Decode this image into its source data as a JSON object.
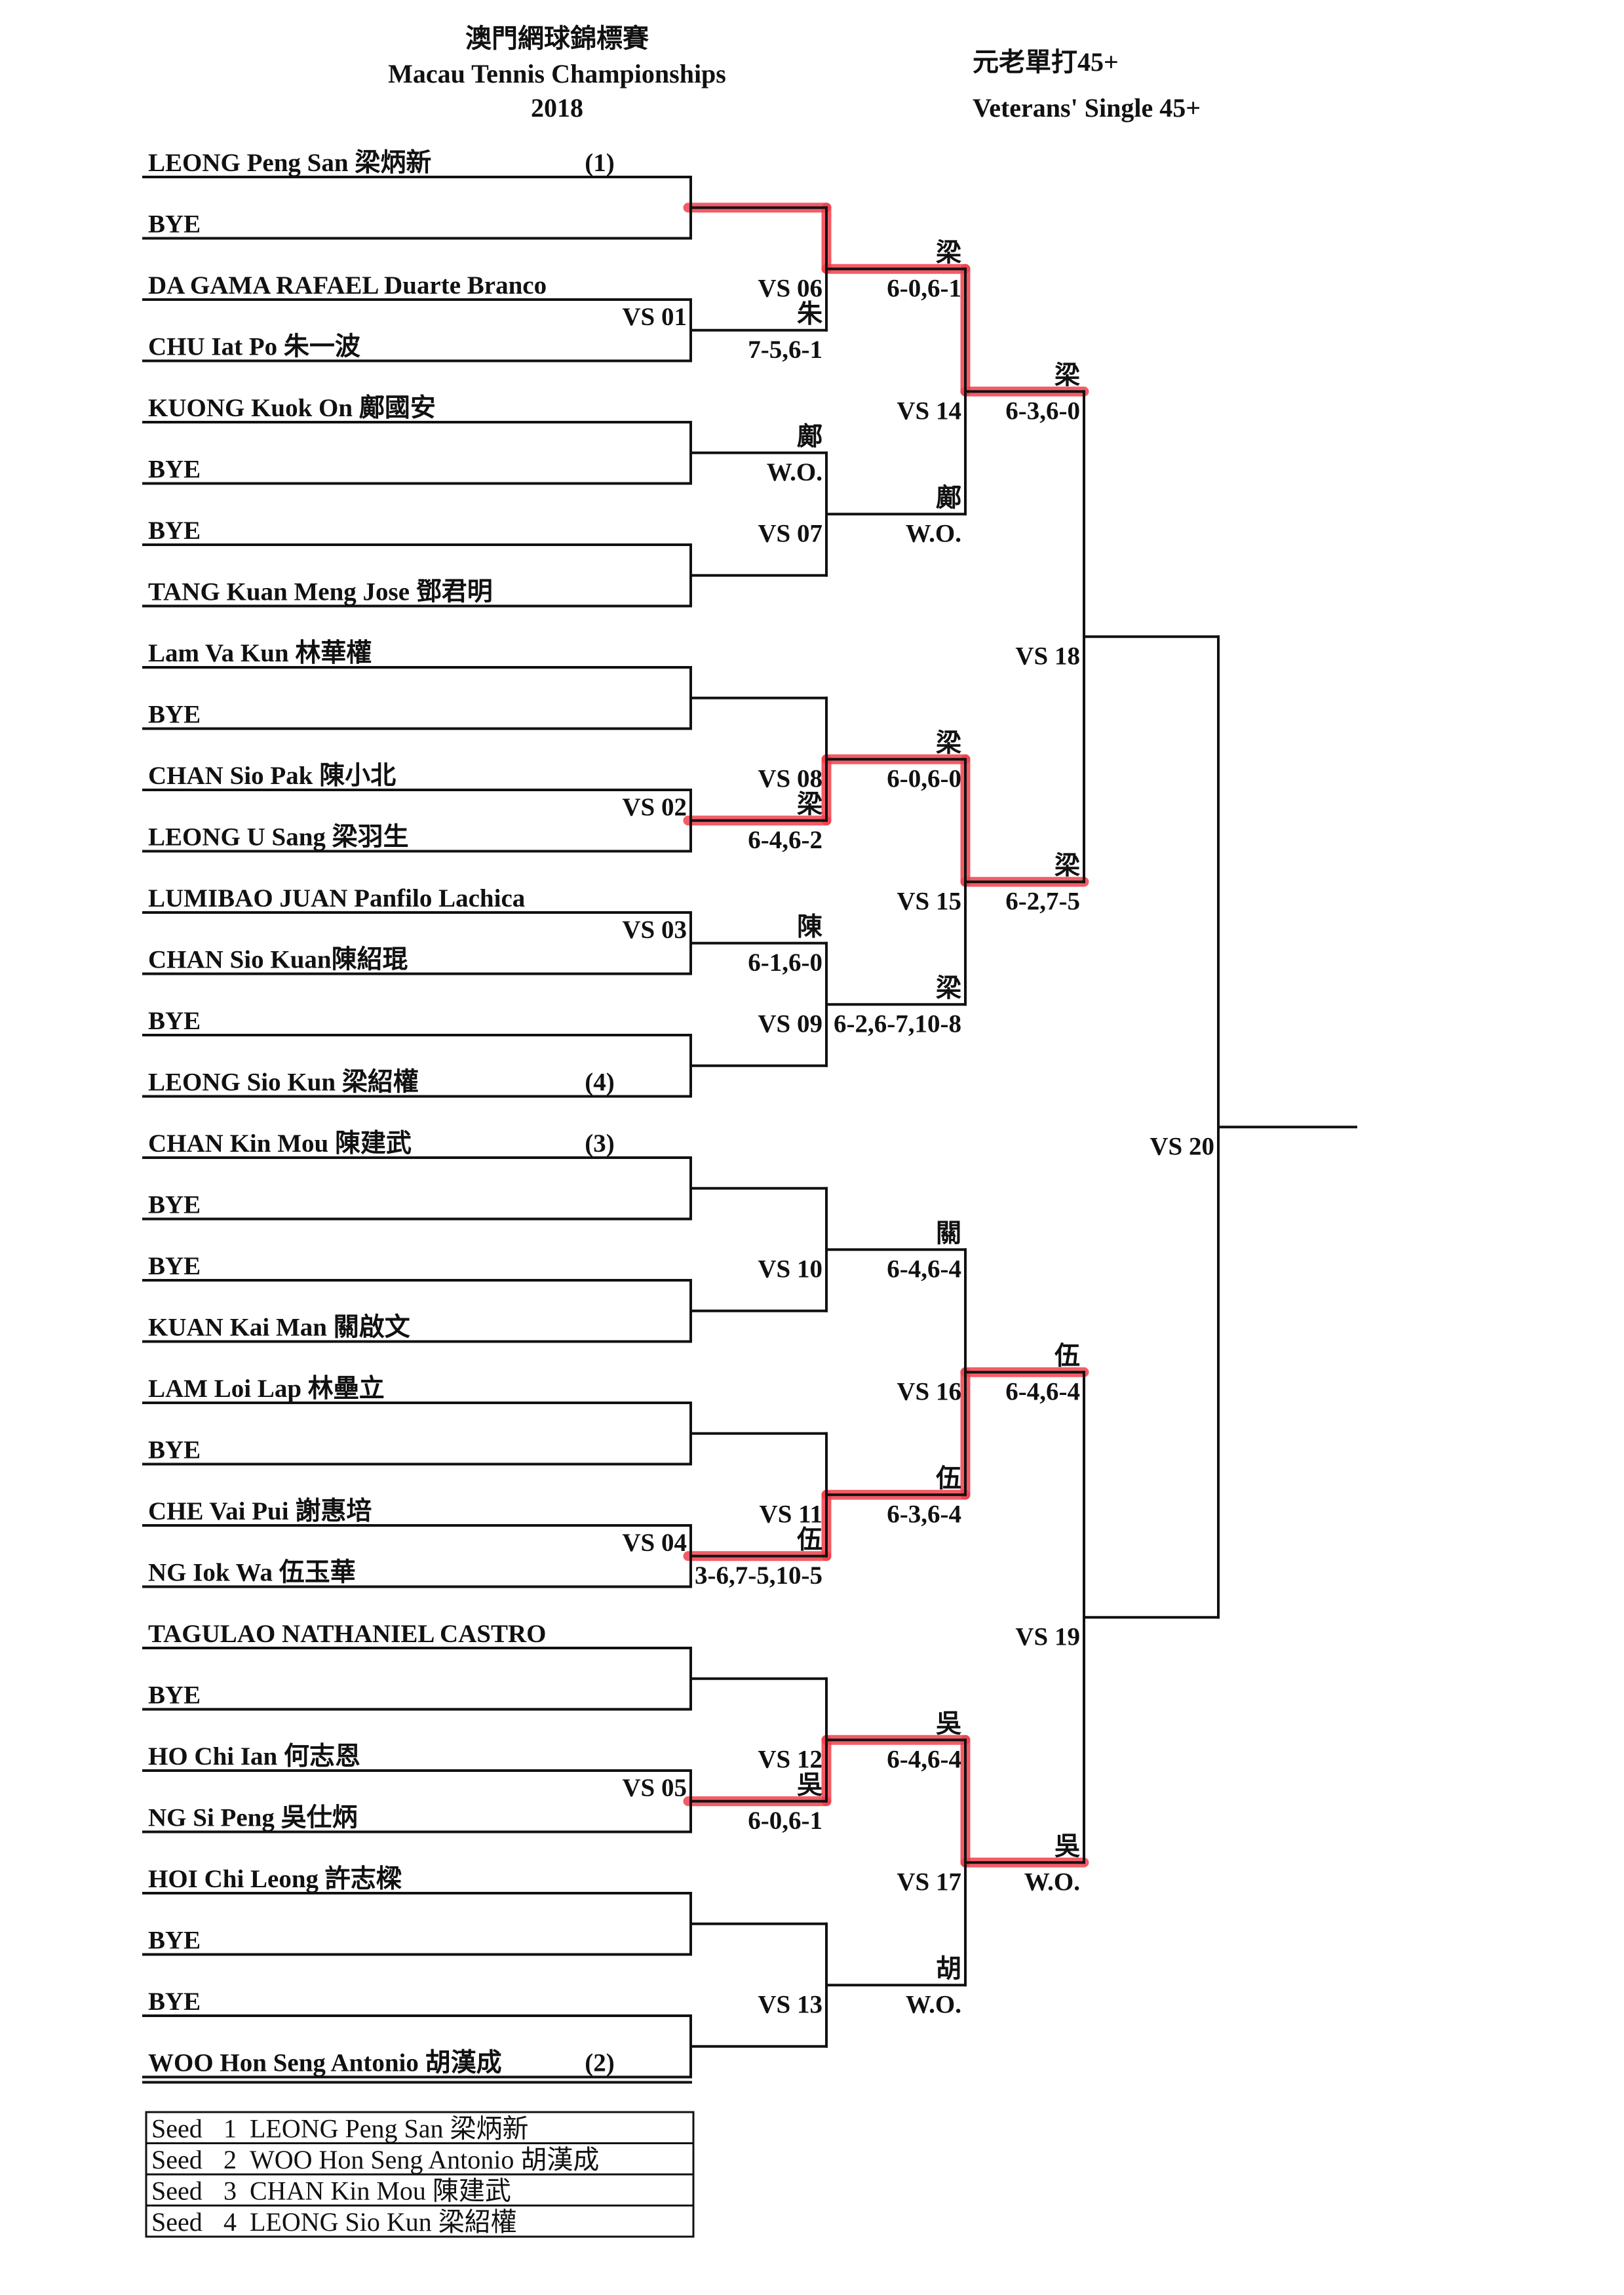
{
  "header": {
    "title_zh": "澳門網球錦標賽",
    "title_en": "Macau Tennis Championships",
    "year": "2018",
    "event_zh": "元老單打45+",
    "event_en": "Veterans' Single 45+"
  },
  "colors": {
    "ink": "#111111",
    "highlight": "#f0404c"
  },
  "players": [
    {
      "name": "LEONG Peng San 梁炳新",
      "seed": "(1)"
    },
    {
      "name": "BYE",
      "seed": ""
    },
    {
      "name": "DA GAMA RAFAEL Duarte Branco",
      "seed": ""
    },
    {
      "name": "CHU Iat Po 朱一波",
      "seed": ""
    },
    {
      "name": "KUONG Kuok On 鄺國安",
      "seed": ""
    },
    {
      "name": "BYE",
      "seed": ""
    },
    {
      "name": "BYE",
      "seed": ""
    },
    {
      "name": "TANG Kuan Meng Jose 鄧君明",
      "seed": ""
    },
    {
      "name": "Lam Va Kun 林華權",
      "seed": ""
    },
    {
      "name": "BYE",
      "seed": ""
    },
    {
      "name": "CHAN Sio Pak 陳小北",
      "seed": ""
    },
    {
      "name": "LEONG U Sang 梁羽生",
      "seed": ""
    },
    {
      "name": "LUMIBAO JUAN Panfilo Lachica",
      "seed": ""
    },
    {
      "name": "CHAN Sio Kuan陳紹琨",
      "seed": ""
    },
    {
      "name": "BYE",
      "seed": ""
    },
    {
      "name": "LEONG Sio Kun 梁紹權",
      "seed": "(4)"
    },
    {
      "name": "CHAN Kin Mou 陳建武",
      "seed": "(3)"
    },
    {
      "name": "BYE",
      "seed": ""
    },
    {
      "name": "BYE",
      "seed": ""
    },
    {
      "name": "KUAN Kai Man 關啟文",
      "seed": ""
    },
    {
      "name": "LAM Loi Lap 林壘立",
      "seed": ""
    },
    {
      "name": "BYE",
      "seed": ""
    },
    {
      "name": "CHE Vai Pui 謝惠培",
      "seed": ""
    },
    {
      "name": "NG Iok Wa 伍玉華",
      "seed": ""
    },
    {
      "name": "TAGULAO NATHANIEL CASTRO",
      "seed": ""
    },
    {
      "name": "BYE",
      "seed": ""
    },
    {
      "name": "HO Chi Ian 何志恩",
      "seed": ""
    },
    {
      "name": "NG Si Peng 吳仕炳",
      "seed": ""
    },
    {
      "name": "HOI Chi Leong 許志樑",
      "seed": ""
    },
    {
      "name": "BYE",
      "seed": ""
    },
    {
      "name": "BYE",
      "seed": ""
    },
    {
      "name": "WOO Hon Seng Antonio 胡漢成",
      "seed": "(2)"
    }
  ],
  "rounds": [
    [
      {
        "label": "",
        "winner": "",
        "score": "",
        "highlighted": true
      },
      {
        "label": "VS 01",
        "winner": "朱",
        "score": "7-5,6-1",
        "highlighted": false
      },
      {
        "label": "",
        "winner": "鄺",
        "score": "W.O.",
        "highlighted": false
      },
      {
        "label": "",
        "winner": "",
        "score": "",
        "highlighted": false
      },
      {
        "label": "",
        "winner": "",
        "score": "",
        "highlighted": false
      },
      {
        "label": "VS 02",
        "winner": "梁",
        "score": "6-4,6-2",
        "highlighted": true
      },
      {
        "label": "VS 03",
        "winner": "陳",
        "score": "6-1,6-0",
        "highlighted": false
      },
      {
        "label": "",
        "winner": "",
        "score": "",
        "highlighted": false
      },
      {
        "label": "",
        "winner": "",
        "score": "",
        "highlighted": false
      },
      {
        "label": "",
        "winner": "",
        "score": "",
        "highlighted": false
      },
      {
        "label": "",
        "winner": "",
        "score": "",
        "highlighted": false
      },
      {
        "label": "VS 04",
        "winner": "伍",
        "score": "3-6,7-5,10-5",
        "highlighted": true
      },
      {
        "label": "",
        "winner": "",
        "score": "",
        "highlighted": false
      },
      {
        "label": "VS 05",
        "winner": "吳",
        "score": "6-0,6-1",
        "highlighted": true
      },
      {
        "label": "",
        "winner": "",
        "score": "",
        "highlighted": false
      },
      {
        "label": "",
        "winner": "",
        "score": "",
        "highlighted": false
      }
    ],
    [
      {
        "label": "VS 06",
        "winner": "梁",
        "score": "6-0,6-1",
        "highlighted": true
      },
      {
        "label": "VS 07",
        "winner": "鄺",
        "score": "W.O.",
        "highlighted": false
      },
      {
        "label": "VS 08",
        "winner": "梁",
        "score": "6-0,6-0",
        "highlighted": true
      },
      {
        "label": "VS 09",
        "winner": "梁",
        "score": "6-2,6-7,10-8",
        "highlighted": false
      },
      {
        "label": "VS 10",
        "winner": "關",
        "score": "6-4,6-4",
        "highlighted": false
      },
      {
        "label": "VS 11",
        "winner": "伍",
        "score": "6-3,6-4",
        "highlighted": true
      },
      {
        "label": "VS 12",
        "winner": "吳",
        "score": "6-4,6-4",
        "highlighted": true
      },
      {
        "label": "VS 13",
        "winner": "胡",
        "score": "W.O.",
        "highlighted": false
      }
    ],
    [
      {
        "label": "VS 14",
        "winner": "梁",
        "score": "6-3,6-0",
        "highlighted": true
      },
      {
        "label": "VS 15",
        "winner": "梁",
        "score": "6-2,7-5",
        "highlighted": true
      },
      {
        "label": "VS 16",
        "winner": "伍",
        "score": "6-4,6-4",
        "highlighted": true
      },
      {
        "label": "VS 17",
        "winner": "吳",
        "score": "W.O.",
        "highlighted": true
      }
    ],
    [
      {
        "label": "VS 18",
        "winner": "",
        "score": "",
        "highlighted": false
      },
      {
        "label": "VS 19",
        "winner": "",
        "score": "",
        "highlighted": false
      }
    ],
    [
      {
        "label": "VS 20",
        "winner": "",
        "score": "",
        "highlighted": false
      }
    ]
  ],
  "seeds": [
    {
      "label": "Seed",
      "number": "1",
      "name": "LEONG Peng San 梁炳新"
    },
    {
      "label": "Seed",
      "number": "2",
      "name": "WOO Hon Seng Antonio 胡漢成"
    },
    {
      "label": "Seed",
      "number": "3",
      "name": "CHAN Kin Mou 陳建武"
    },
    {
      "label": "Seed",
      "number": "4",
      "name": "LEONG Sio Kun 梁紹權"
    }
  ]
}
